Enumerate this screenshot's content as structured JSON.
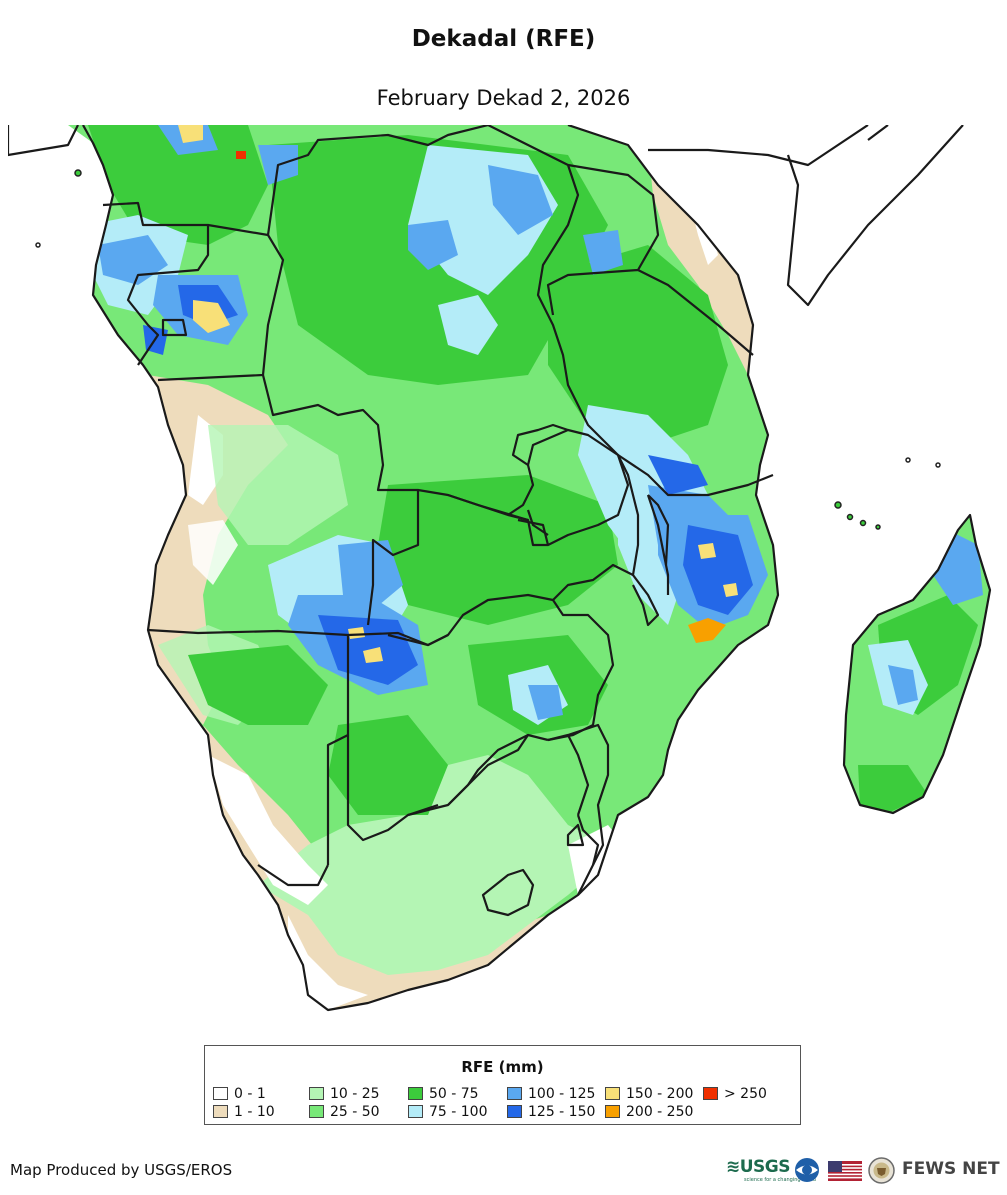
{
  "title": "Dekadal (RFE)",
  "subtitle": "February Dekad 2, 2026",
  "legend": {
    "title": "RFE (mm)",
    "items": [
      {
        "label": "0 - 1",
        "color": "#ffffff"
      },
      {
        "label": "1 - 10",
        "color": "#eedcbc"
      },
      {
        "label": "10 - 25",
        "color": "#b4f5b4"
      },
      {
        "label": "25 - 50",
        "color": "#78e878"
      },
      {
        "label": "50 - 75",
        "color": "#3ccc3c"
      },
      {
        "label": "75 - 100",
        "color": "#b4ecf8"
      },
      {
        "label": "100 - 125",
        "color": "#5aa8f0"
      },
      {
        "label": "125 - 150",
        "color": "#2468e8"
      },
      {
        "label": "150 - 200",
        "color": "#f8e078"
      },
      {
        "label": "200 - 250",
        "color": "#f8a000"
      },
      {
        "label": "> 250",
        "color": "#f03000"
      }
    ]
  },
  "credit": "Map Produced by USGS/EROS",
  "logos": {
    "usgs": "≋USGS",
    "usgs_tagline": "science for a changing world",
    "fews": "FEWS NET",
    "icons": [
      "usgs-logo",
      "noaa-logo-icon",
      "us-flag-icon",
      "state-department-seal-icon"
    ]
  }
}
